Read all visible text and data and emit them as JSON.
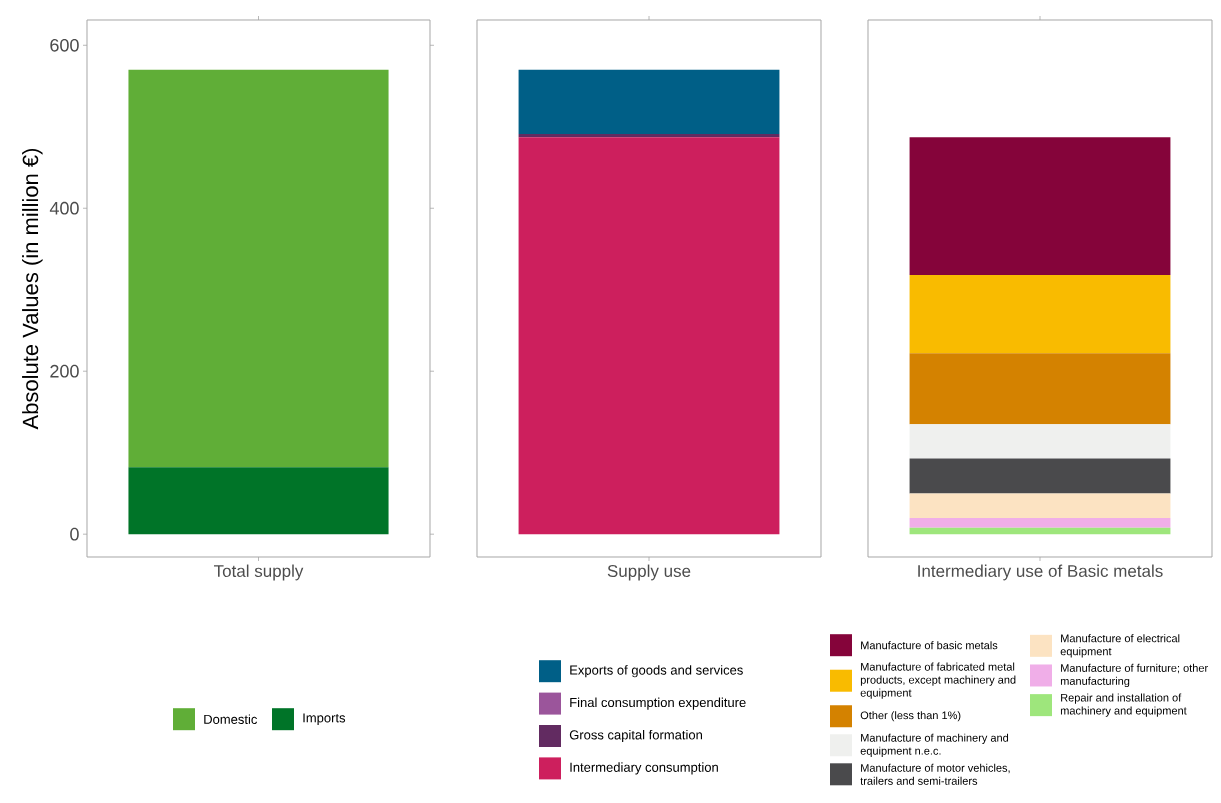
{
  "chart_data": [
    {
      "type": "bar",
      "stacked": true,
      "categories": [
        "Total supply"
      ],
      "ylabel": "Absolute Values (in million €)",
      "ylim": [
        -28,
        631
      ],
      "yticks": [
        0,
        200,
        400,
        600
      ],
      "legend": "bottom",
      "series": [
        {
          "name": "Imports",
          "color": "#007428",
          "values": [
            82
          ]
        },
        {
          "name": "Domestic",
          "color": "#60ae37",
          "values": [
            488
          ]
        }
      ]
    },
    {
      "type": "bar",
      "stacked": true,
      "categories": [
        "Supply use"
      ],
      "ylim": [
        -28,
        631
      ],
      "tick_labels": "x",
      "legend": "bottom",
      "series": [
        {
          "name": "Intermediary consumption",
          "color": "#cd1f5d",
          "values": [
            487
          ]
        },
        {
          "name": "Gross capital formation",
          "color": "#622b61",
          "values": [
            4
          ]
        },
        {
          "name": "Final consumption expenditure",
          "color": "#9b559b",
          "values": [
            0
          ]
        },
        {
          "name": "Exports of goods and services",
          "color": "#005f87",
          "values": [
            79
          ]
        }
      ]
    },
    {
      "type": "bar",
      "stacked": true,
      "categories": [
        "Intermediary use of Basic metals"
      ],
      "ylim": [
        -28,
        631
      ],
      "tick_labels": "x",
      "legend": "bottom",
      "series": [
        {
          "name": "Repair and installation of machinery and equipment",
          "color": "#9ee67c",
          "values": [
            8
          ]
        },
        {
          "name": "Manufacture of furniture; other manufacturing",
          "color": "#f0aee8",
          "values": [
            12
          ]
        },
        {
          "name": "Manufacture of electrical equipment",
          "color": "#fce3c2",
          "values": [
            30
          ]
        },
        {
          "name": "Manufacture of motor vehicles, trailers and semi-trailers",
          "color": "#4a4a4c",
          "values": [
            43
          ]
        },
        {
          "name": "Manufacture of machinery and equipment n.e.c.",
          "color": "#eff0ee",
          "values": [
            42
          ]
        },
        {
          "name": "Other (less than 1%)",
          "color": "#d48200",
          "values": [
            87
          ]
        },
        {
          "name": "Manufacture of fabricated metal products, except machinery and equipment",
          "color": "#f9bb00",
          "values": [
            96
          ]
        },
        {
          "name": "Manufacture of basic metals",
          "color": "#85043a",
          "values": [
            169
          ]
        }
      ]
    }
  ]
}
